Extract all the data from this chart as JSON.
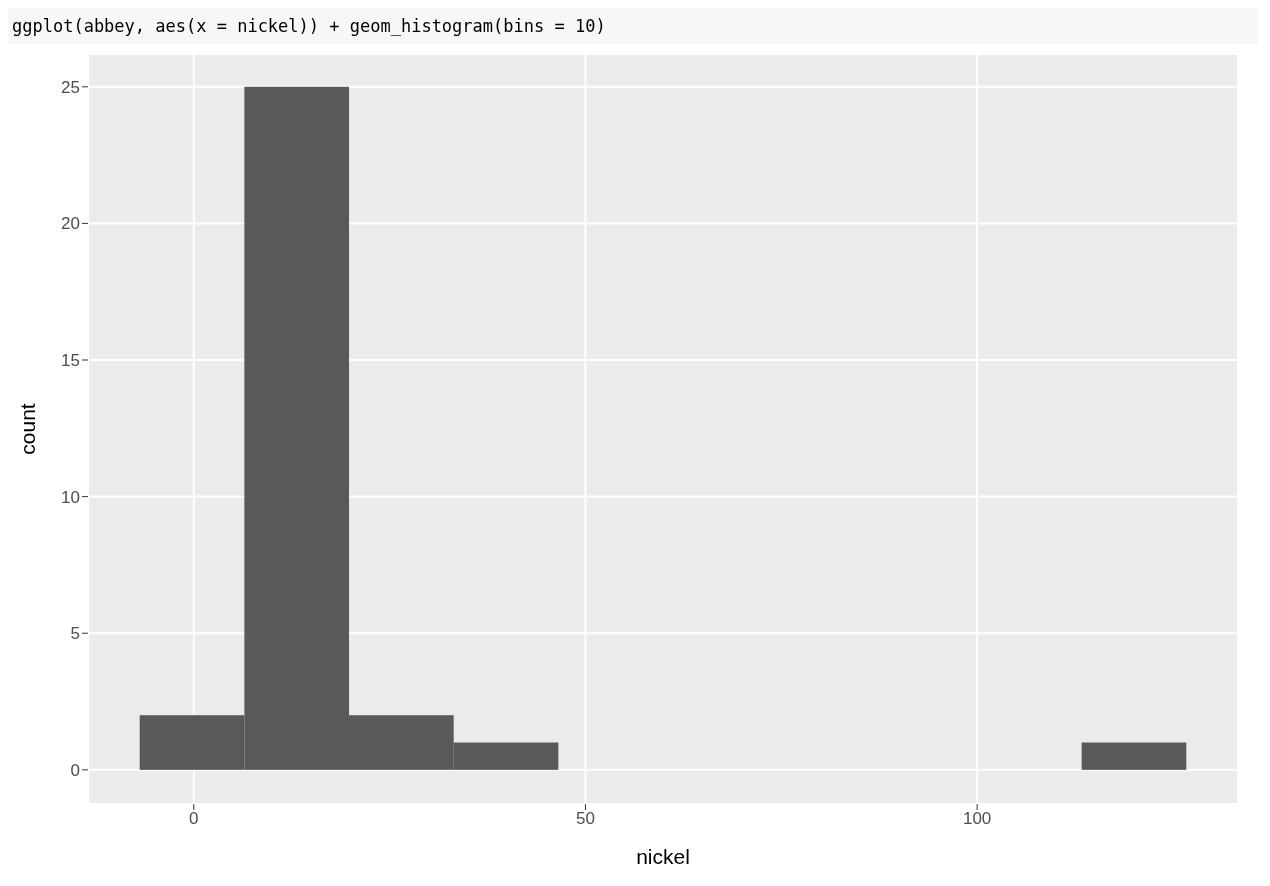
{
  "chart_data": {
    "type": "histogram",
    "title": "ggplot(abbey, aes(x = nickel)) + geom_histogram(bins = 10)",
    "xlabel": "nickel",
    "ylabel": "count",
    "bins": [
      -6.9,
      6.46,
      19.82,
      33.18,
      46.54,
      59.9,
      73.26,
      86.62,
      99.98,
      113.34,
      126.7
    ],
    "values": [
      2,
      25,
      2,
      1,
      0,
      0,
      0,
      0,
      0,
      1
    ],
    "color": "#595959",
    "xlim": [
      -13.5,
      133.3
    ],
    "xticks": [
      0,
      50,
      100
    ],
    "ylim": [
      -1.25,
      26.2
    ],
    "yticks": [
      0,
      5,
      10,
      15,
      20,
      25
    ],
    "grid": true
  }
}
